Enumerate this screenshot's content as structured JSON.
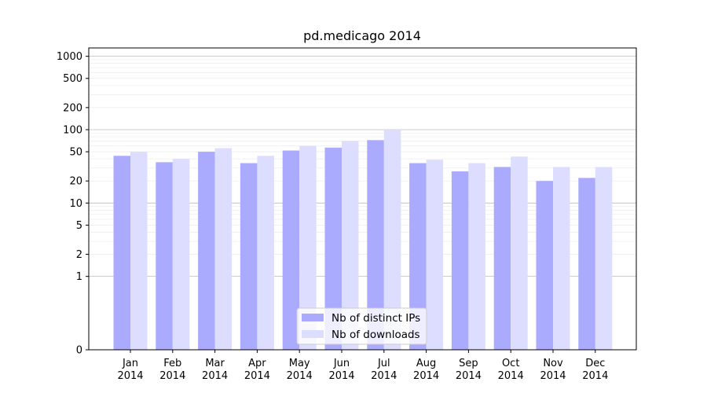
{
  "chart_data": {
    "type": "bar",
    "title": "pd.medicago 2014",
    "xlabel": "",
    "ylabel": "",
    "yscale": "symlog",
    "ylim": [
      0,
      1300
    ],
    "yticks": [
      0,
      1,
      2,
      5,
      10,
      20,
      50,
      100,
      200,
      500,
      1000
    ],
    "grid": true,
    "legend_position": "bottom-center",
    "categories": [
      "Jan\n2014",
      "Feb\n2014",
      "Mar\n2014",
      "Apr\n2014",
      "May\n2014",
      "Jun\n2014",
      "Jul\n2014",
      "Aug\n2014",
      "Sep\n2014",
      "Oct\n2014",
      "Nov\n2014",
      "Dec\n2014"
    ],
    "series": [
      {
        "name": "Nb of distinct IPs",
        "color": "#aaaaff",
        "values": [
          44,
          36,
          50,
          35,
          52,
          57,
          72,
          35,
          27,
          31,
          20,
          22
        ]
      },
      {
        "name": "Nb of downloads",
        "color": "#ddddff",
        "values": [
          50,
          40,
          56,
          44,
          60,
          70,
          100,
          39,
          35,
          43,
          31,
          31
        ]
      }
    ]
  }
}
